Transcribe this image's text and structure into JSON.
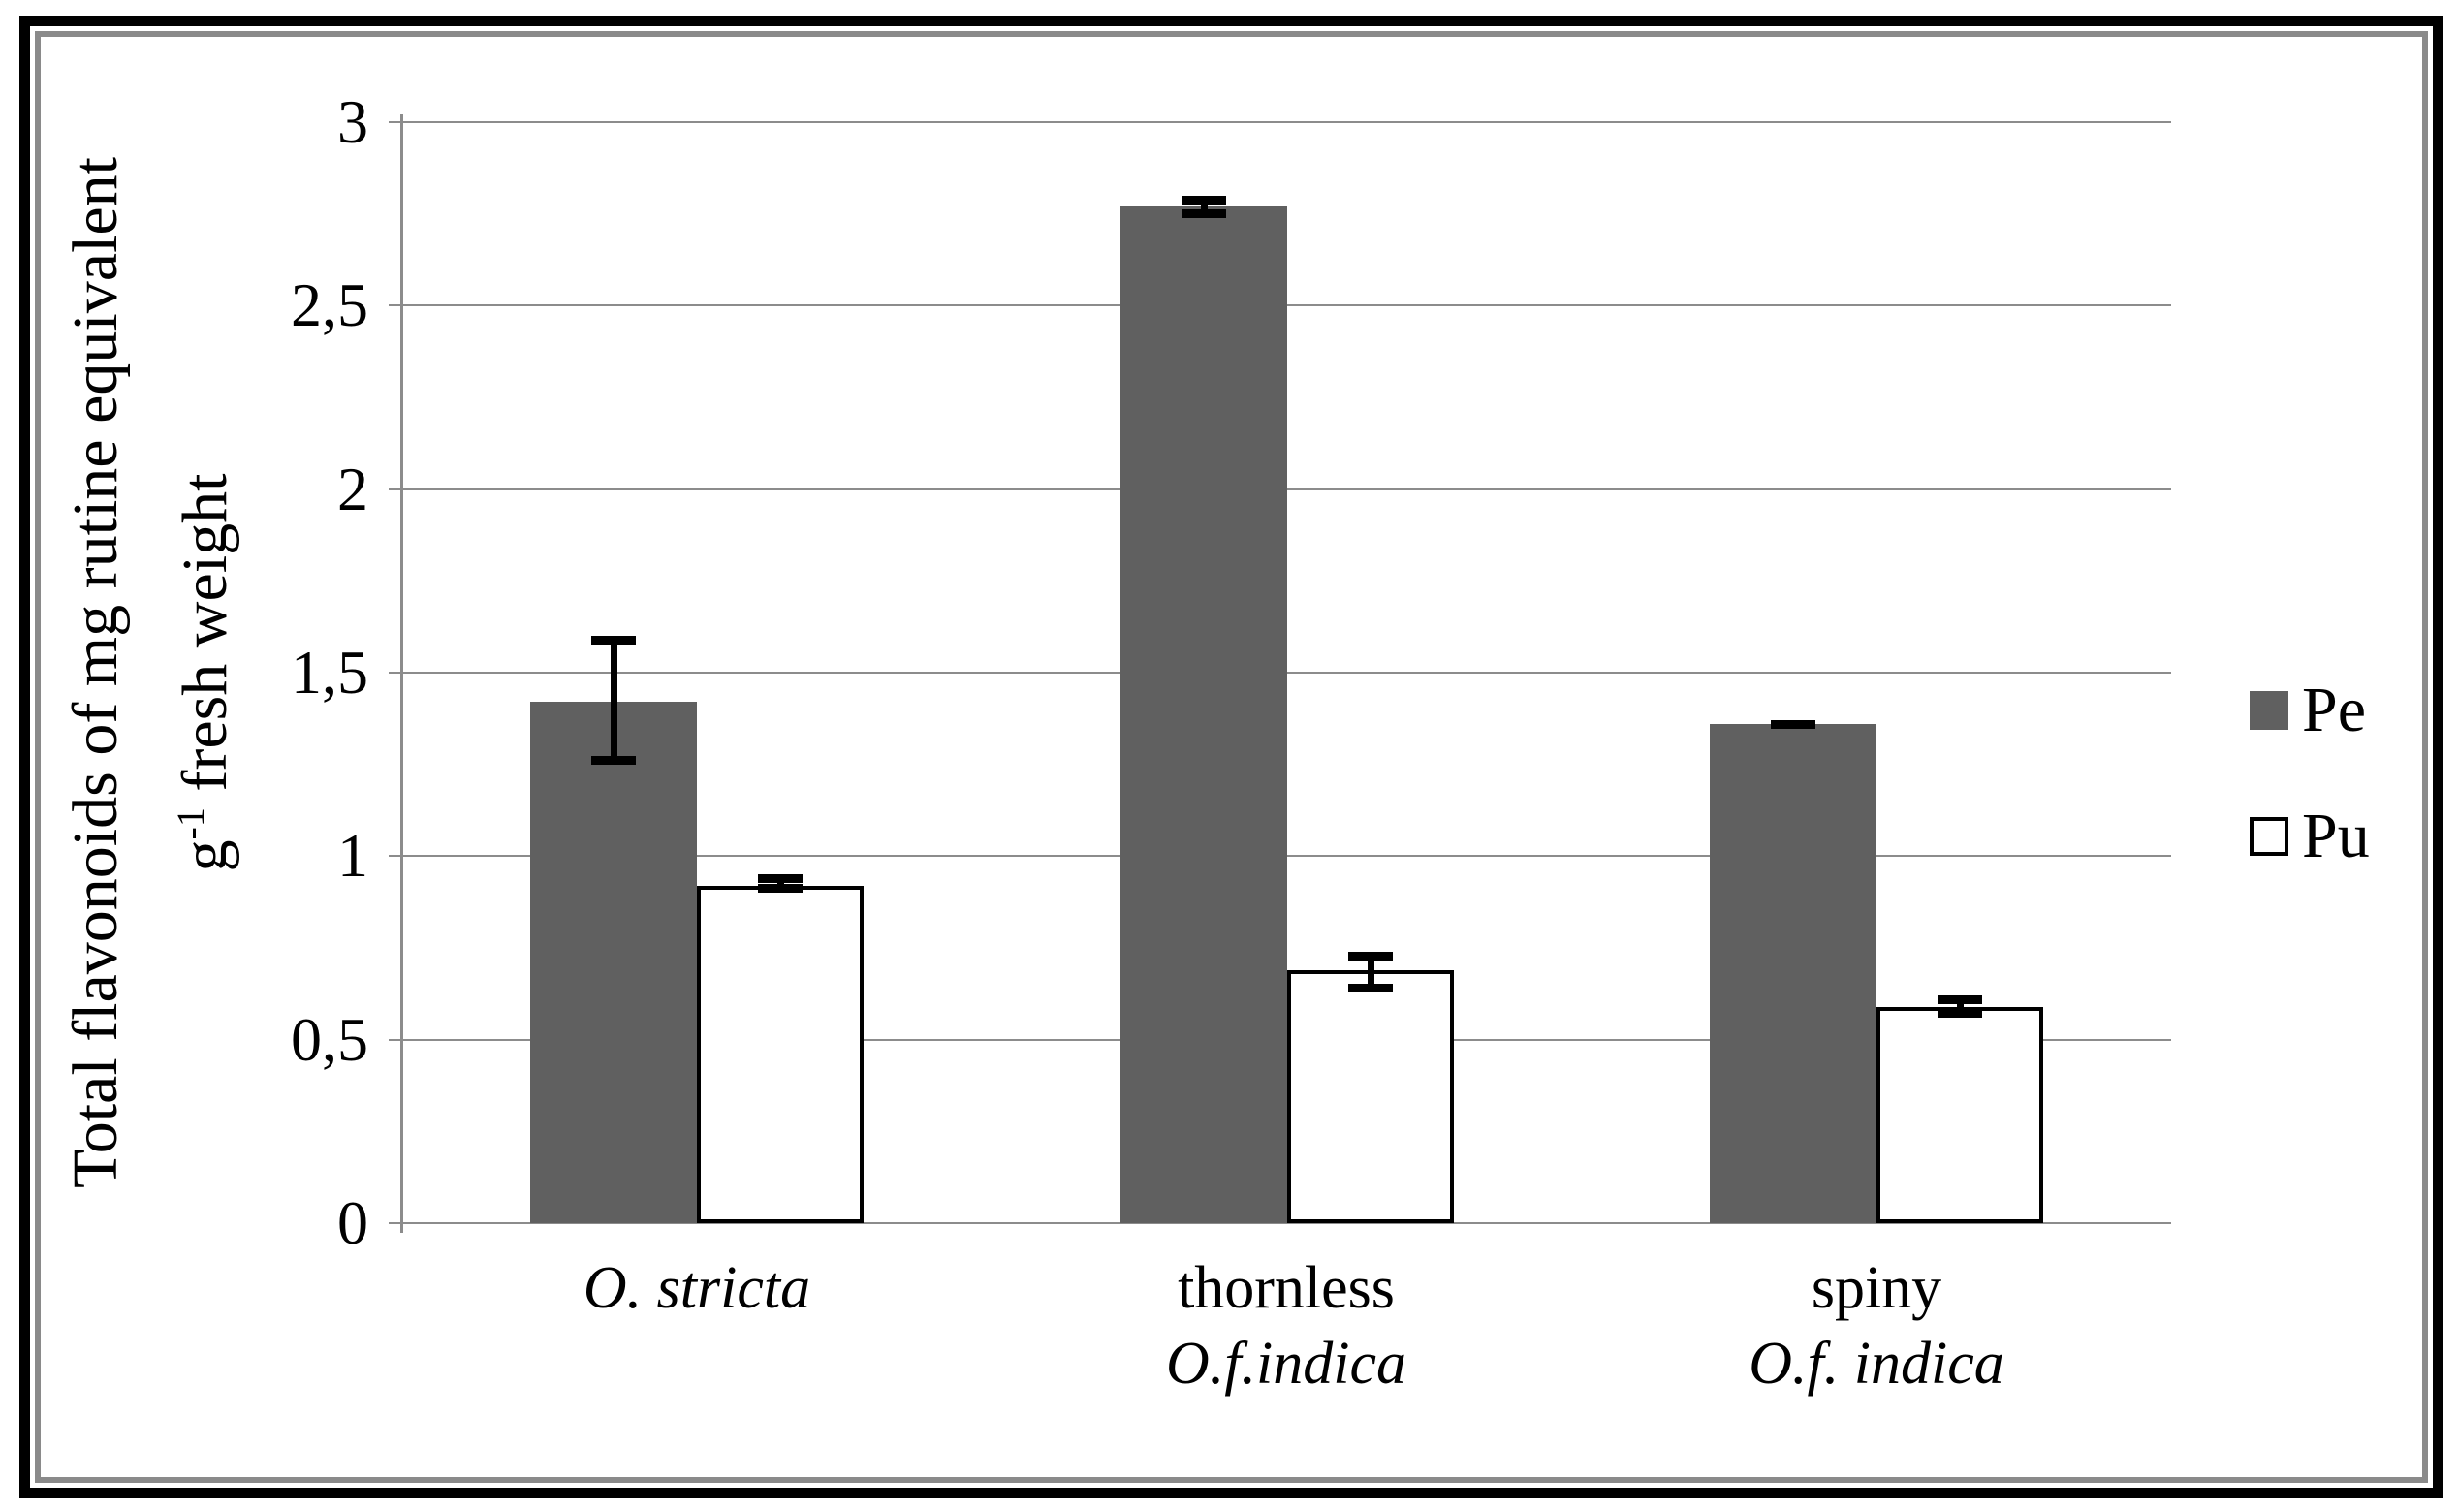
{
  "chart_data": {
    "type": "bar",
    "title": "",
    "ylabel_line1": "Total flavonoids of mg rutine equivalent",
    "ylabel_line2_pre": "g",
    "ylabel_line2_sup": "-1",
    "ylabel_line2_post": " fresh weight",
    "xlabel": "",
    "ylim": [
      0,
      3
    ],
    "ytick_step": 0.5,
    "ytick_labels": [
      "0",
      "0,5",
      "1",
      "1,5",
      "2",
      "2,5",
      "3"
    ],
    "decimal_separator": ",",
    "grid": true,
    "legend_position": "right",
    "categories": [
      {
        "line1": "O. stricta",
        "line1_italic": true,
        "line2": "",
        "line2_italic": false
      },
      {
        "line1": "thornless",
        "line1_italic": false,
        "line2": "O.f.indica",
        "line2_italic": true
      },
      {
        "line1": "spiny",
        "line1_italic": false,
        "line2": "O.f. indica",
        "line2_italic": true
      }
    ],
    "series": [
      {
        "name": "Pe",
        "fill": "#606060",
        "border": "none",
        "values": [
          1.42,
          2.77,
          1.36
        ],
        "error_low": [
          1.25,
          2.74,
          1.35
        ],
        "error_high": [
          1.6,
          2.8,
          1.37
        ]
      },
      {
        "name": "Pu",
        "fill": "#ffffff",
        "border": "#000000",
        "values": [
          0.92,
          0.69,
          0.59
        ],
        "error_low": [
          0.9,
          0.63,
          0.56
        ],
        "error_high": [
          0.95,
          0.74,
          0.62
        ]
      }
    ],
    "colors": {
      "grid": "#8c8c8c",
      "axis": "#8c8c8c",
      "error_bar": "#000000",
      "frame_outer": "#000000",
      "frame_inner": "#8a8a8a",
      "background": "#ffffff"
    }
  }
}
